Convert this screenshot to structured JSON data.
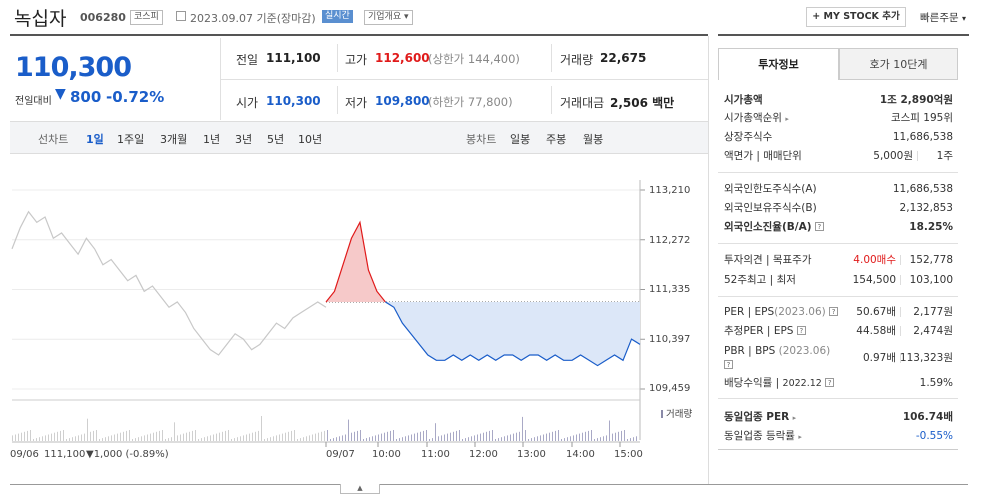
{
  "header": {
    "company_name": "녹십자",
    "code": "006280",
    "market_badge": "코스피",
    "date_text": "2023.09.07 기준(장마감)",
    "realtime_badge": "실시간",
    "company_overview": "기업개요",
    "my_stock_button": "+ MY STOCK 추가",
    "quick_order": "빠른주문"
  },
  "quote": {
    "price": "110,300",
    "change_label": "전일대비",
    "change_value": "800",
    "change_pct": "-0.72%",
    "prev_close_label": "전일",
    "prev_close": "111,100",
    "high_label": "고가",
    "high": "112,600",
    "upper_limit": "(상한가 144,400)",
    "volume_label": "거래량",
    "volume": "22,675",
    "open_label": "시가",
    "open": "110,300",
    "low_label": "저가",
    "low": "109,800",
    "lower_limit": "(하한가 77,800)",
    "amount_label": "거래대금",
    "amount": "2,506 백만"
  },
  "periods": {
    "line_label": "선차트",
    "items": [
      "1일",
      "1주일",
      "3개월",
      "1년",
      "3년",
      "5년",
      "10년"
    ],
    "candle_label": "봉차트",
    "candle_items": [
      "일봉",
      "주봉",
      "월봉"
    ]
  },
  "colors": {
    "up": "#e01a1a",
    "down": "#1a5dc9",
    "prev_day": "#c8c8c8"
  },
  "chart_data": {
    "type": "line",
    "y_ticks": [
      "113,210",
      "112,272",
      "111,335",
      "110,397",
      "109,459"
    ],
    "x_ticks": [
      "09/07",
      "10:00",
      "11:00",
      "12:00",
      "13:00",
      "14:00",
      "15:00"
    ],
    "volume_label": "거래량",
    "baseline": 111100,
    "ylim": [
      109459,
      113210
    ],
    "prev_day_series": [
      112100,
      112500,
      112800,
      112600,
      112700,
      112300,
      112400,
      112200,
      112000,
      112300,
      112100,
      111800,
      111900,
      111700,
      111500,
      111600,
      111300,
      111400,
      111200,
      111000,
      111100,
      110900,
      110600,
      110400,
      110200,
      110100,
      110300,
      110500,
      110400,
      110200,
      110300,
      110500,
      110700,
      110600,
      110800,
      110900,
      111000,
      111100,
      111000
    ],
    "today_series": [
      111100,
      111300,
      111800,
      112300,
      112600,
      111700,
      111300,
      111100,
      111000,
      110700,
      110500,
      110300,
      110100,
      110000,
      110000,
      110100,
      110000,
      110100,
      110000,
      110100,
      110000,
      110100,
      110100,
      110000,
      110100,
      110100,
      110000,
      110100,
      110000,
      110000,
      110100,
      110000,
      109900,
      110000,
      110100,
      110000,
      110400,
      110300
    ],
    "footer_left": "09/06",
    "footer_price": "111,100",
    "footer_change": "▼1,000 (-0.89%)",
    "footer_right": "09/07"
  },
  "side": {
    "tabs": [
      "투자정보",
      "호가 10단계"
    ],
    "market_cap_label": "시가총액",
    "market_cap": "1조 2,890억원",
    "rank_label": "시가총액순위",
    "rank": "코스피 195위",
    "shares_label": "상장주식수",
    "shares": "11,686,538",
    "par_label": "액면가",
    "unit_label": "매매단위",
    "par": "5,000원",
    "unit": "1주",
    "foreign_limit_label": "외국인한도주식수(A)",
    "foreign_limit": "11,686,538",
    "foreign_hold_label": "외국인보유주식수(B)",
    "foreign_hold": "2,132,853",
    "foreign_ratio_label": "외국인소진율(B/A)",
    "foreign_ratio": "18.25%",
    "opinion_label": "투자의견",
    "target_label": "목표주가",
    "opinion": "4.00매수",
    "target": "152,778",
    "w52_label": "52주최고",
    "w52_low_label": "최저",
    "w52_high": "154,500",
    "w52_low": "103,100",
    "per_label": "PER",
    "eps_label": "EPS",
    "per_date": "(2023.06)",
    "per": "50.67배",
    "eps": "2,177원",
    "est_per_label": "추정PER",
    "est_eps_label": "EPS",
    "est_per": "44.58배",
    "est_eps": "2,474원",
    "pbr_label": "PBR",
    "bps_label": "BPS",
    "pbr_date": "(2023.06)",
    "pbr": "0.97배",
    "bps": "113,323원",
    "div_label": "배당수익률",
    "div_date": "2022.12",
    "div": "1.59%",
    "sector_per_label": "동일업종 PER",
    "sector_per": "106.74배",
    "sector_change_label": "동일업종 등락률",
    "sector_change": "-0.55%"
  }
}
